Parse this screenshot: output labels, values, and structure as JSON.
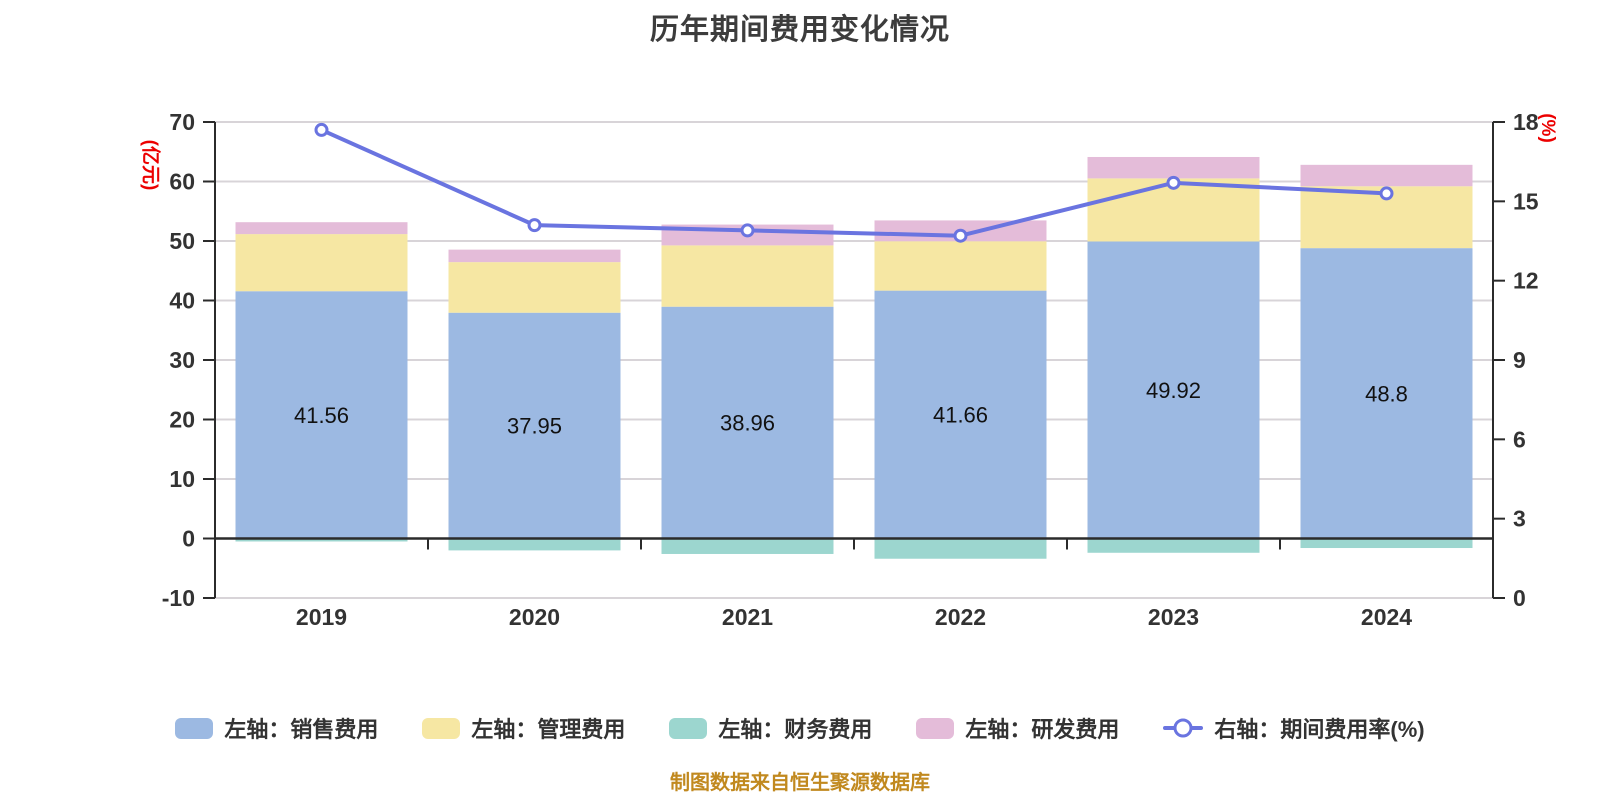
{
  "title": "历年期间费用变化情况",
  "footer": "制图数据来自恒生聚源数据库",
  "colors": {
    "sales": "#9cb9e2",
    "admin": "#f6e7a3",
    "finance": "#9cd6cf",
    "rd": "#e4bcd9",
    "line": "#6a74e0",
    "grid": "#d8d4d8",
    "axis": "#2b2b2b",
    "title_text": "#3c3c3c",
    "footer_text": "#c1891f",
    "unit_text": "#ec0000",
    "tick_text": "#333333"
  },
  "left_axis": {
    "unit": "(亿元)",
    "min": -10,
    "max": 70,
    "step": 10,
    "ticks": [
      -10,
      0,
      10,
      20,
      30,
      40,
      50,
      60,
      70
    ]
  },
  "right_axis": {
    "unit": "(%)",
    "min": 0,
    "max": 18,
    "step": 3,
    "ticks": [
      0,
      3,
      6,
      9,
      12,
      15,
      18
    ]
  },
  "chart_data": {
    "type": "bar-line-combo",
    "categories": [
      "2019",
      "2020",
      "2021",
      "2022",
      "2023",
      "2024"
    ],
    "left_ylim": [
      -10,
      70
    ],
    "right_ylim": [
      0,
      18
    ],
    "grid": true,
    "legend_position": "bottom",
    "series": [
      {
        "name": "左轴：销售费用",
        "key": "sales",
        "type": "bar",
        "stack": true,
        "color": "#9cb9e2",
        "values": [
          41.56,
          37.95,
          38.96,
          41.66,
          49.92,
          48.8
        ],
        "labels": [
          "41.56",
          "37.95",
          "38.96",
          "41.66",
          "49.92",
          "48.8"
        ]
      },
      {
        "name": "左轴：管理费用",
        "key": "admin",
        "type": "bar",
        "stack": true,
        "color": "#f6e7a3",
        "values": [
          9.6,
          8.5,
          10.3,
          8.3,
          10.6,
          10.4
        ]
      },
      {
        "name": "左轴：财务费用",
        "key": "finance",
        "type": "bar",
        "stack": true,
        "color": "#9cd6cf",
        "values": [
          -0.5,
          -2.0,
          -2.6,
          -3.4,
          -2.4,
          -1.6
        ]
      },
      {
        "name": "左轴：研发费用",
        "key": "rd",
        "type": "bar",
        "stack": true,
        "color": "#e4bcd9",
        "values": [
          2.0,
          2.1,
          3.5,
          3.5,
          3.6,
          3.6
        ]
      },
      {
        "name": "右轴：期间费用率(%)",
        "key": "rate",
        "type": "line",
        "axis": "right",
        "color": "#6a74e0",
        "values": [
          17.7,
          14.1,
          13.9,
          13.7,
          15.7,
          15.3
        ]
      }
    ]
  }
}
